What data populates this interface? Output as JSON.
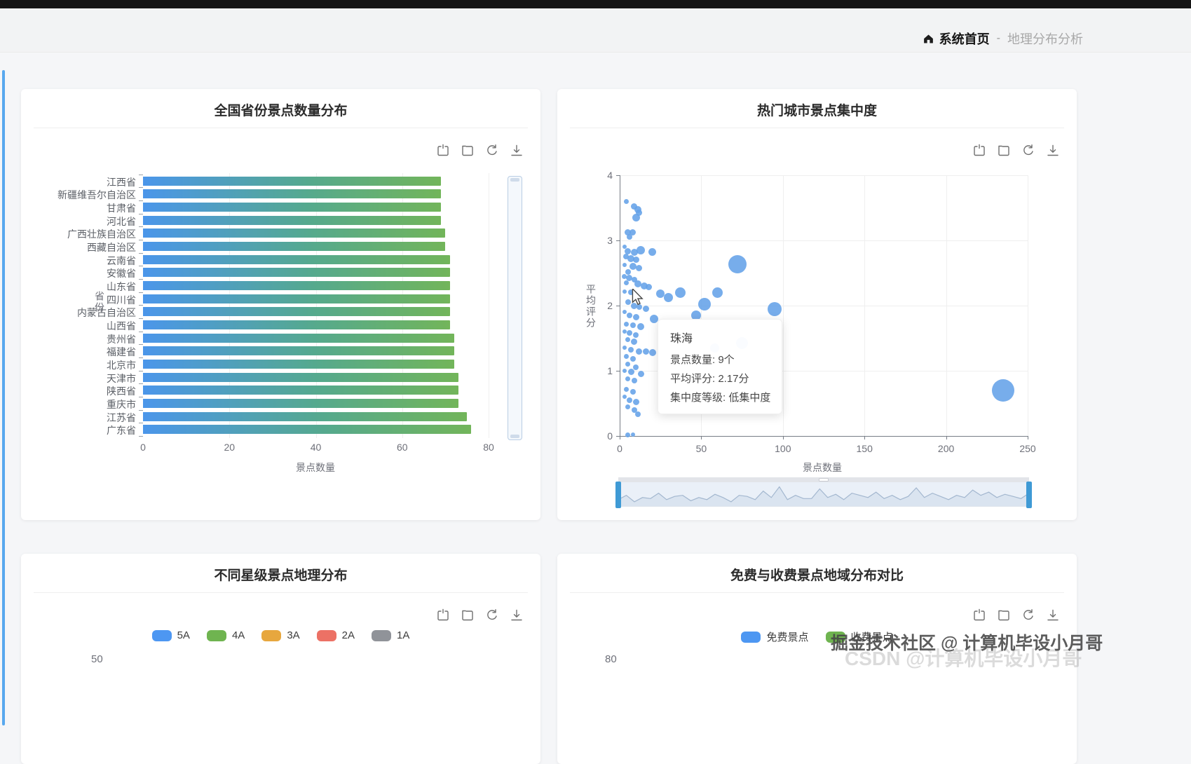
{
  "header": {
    "home_label": "系统首页",
    "separator": "-",
    "current_label": "地理分布分析"
  },
  "toolbox": {
    "icons": [
      "zoom-select-icon",
      "box-restore-icon",
      "refresh-icon",
      "download-icon"
    ]
  },
  "colors": {
    "bar_gradient_start": "#4b96ea",
    "bar_gradient_end": "#72b55a",
    "bubble": "#64a2e8",
    "slider_handle": "#3f9ad5",
    "accent_scrollbar": "#58a8ee",
    "legend_5A": "#4d97f2",
    "legend_4A": "#6fb450",
    "legend_3A": "#e7a73e",
    "legend_2A": "#ec7165",
    "legend_1A": "#909399",
    "legend_free": "#4d97f2",
    "legend_paid": "#6fb450"
  },
  "chart_data": [
    {
      "type": "bar",
      "orientation": "horizontal",
      "title": "全国省份景点数量分布",
      "xlabel": "景点数量",
      "ylabel": "省份",
      "xlim": [
        0,
        80
      ],
      "xticks": [
        0,
        20,
        40,
        60,
        80
      ],
      "grid": true,
      "categories": [
        "江西省",
        "新疆维吾尔自治区",
        "甘肃省",
        "河北省",
        "广西壮族自治区",
        "西藏自治区",
        "云南省",
        "安徽省",
        "山东省",
        "四川省",
        "内蒙古自治区",
        "山西省",
        "贵州省",
        "福建省",
        "北京市",
        "天津市",
        "陕西省",
        "重庆市",
        "江苏省",
        "广东省"
      ],
      "values": [
        69,
        69,
        69,
        69,
        70,
        70,
        71,
        71,
        71,
        71,
        71,
        71,
        72,
        72,
        72,
        73,
        73,
        73,
        75,
        76
      ]
    },
    {
      "type": "scatter",
      "title": "热门城市景点集中度",
      "xlabel": "景点数量",
      "ylabel": "平均评分",
      "xlim": [
        0,
        250
      ],
      "ylim": [
        0,
        4
      ],
      "xticks": [
        0,
        50,
        100,
        150,
        200,
        250
      ],
      "yticks": [
        0,
        1,
        2,
        3,
        4
      ],
      "grid": true,
      "points": [
        [
          4,
          3.6,
          7
        ],
        [
          9,
          3.52,
          9
        ],
        [
          11,
          3.47,
          10
        ],
        [
          12,
          3.42,
          9
        ],
        [
          10,
          3.35,
          11
        ],
        [
          5,
          3.12,
          9
        ],
        [
          8,
          3.12,
          9
        ],
        [
          6,
          3.05,
          8
        ],
        [
          3,
          2.9,
          6
        ],
        [
          5,
          2.83,
          9
        ],
        [
          9,
          2.82,
          10
        ],
        [
          13,
          2.85,
          12
        ],
        [
          20,
          2.82,
          11
        ],
        [
          4,
          2.75,
          8
        ],
        [
          7,
          2.72,
          10
        ],
        [
          10,
          2.7,
          9
        ],
        [
          3,
          2.62,
          6
        ],
        [
          8,
          2.6,
          10
        ],
        [
          12,
          2.58,
          9
        ],
        [
          72,
          2.63,
          26
        ],
        [
          5,
          2.52,
          8
        ],
        [
          3,
          2.45,
          7
        ],
        [
          6,
          2.42,
          9
        ],
        [
          9,
          2.4,
          8
        ],
        [
          4,
          2.35,
          7
        ],
        [
          11,
          2.33,
          10
        ],
        [
          15,
          2.3,
          10
        ],
        [
          18,
          2.28,
          9
        ],
        [
          3,
          2.22,
          6
        ],
        [
          7,
          2.2,
          8
        ],
        [
          25,
          2.18,
          12
        ],
        [
          30,
          2.12,
          13
        ],
        [
          37,
          2.2,
          15
        ],
        [
          60,
          2.2,
          15
        ],
        [
          52,
          2.02,
          18
        ],
        [
          5,
          2.05,
          8
        ],
        [
          9,
          2.0,
          9
        ],
        [
          12,
          1.98,
          8
        ],
        [
          16,
          1.95,
          9
        ],
        [
          95,
          1.95,
          20
        ],
        [
          47,
          1.85,
          14
        ],
        [
          3,
          1.9,
          6
        ],
        [
          6,
          1.85,
          8
        ],
        [
          10,
          1.82,
          9
        ],
        [
          21,
          1.8,
          12
        ],
        [
          4,
          1.72,
          7
        ],
        [
          8,
          1.7,
          8
        ],
        [
          13,
          1.68,
          10
        ],
        [
          3,
          1.6,
          6
        ],
        [
          6,
          1.58,
          8
        ],
        [
          10,
          1.55,
          8
        ],
        [
          5,
          1.48,
          7
        ],
        [
          9,
          1.45,
          9
        ],
        [
          75,
          1.42,
          17
        ],
        [
          58,
          1.35,
          13
        ],
        [
          3,
          1.35,
          6
        ],
        [
          7,
          1.32,
          8
        ],
        [
          12,
          1.3,
          9
        ],
        [
          16,
          1.3,
          9
        ],
        [
          20,
          1.28,
          10
        ],
        [
          4,
          1.22,
          7
        ],
        [
          8,
          1.18,
          8
        ],
        [
          5,
          1.1,
          7
        ],
        [
          10,
          1.05,
          8
        ],
        [
          3,
          1.0,
          6
        ],
        [
          7,
          0.98,
          9
        ],
        [
          13,
          0.95,
          9
        ],
        [
          5,
          0.88,
          7
        ],
        [
          9,
          0.85,
          8
        ],
        [
          4,
          0.72,
          7
        ],
        [
          8,
          0.68,
          8
        ],
        [
          235,
          0.7,
          32
        ],
        [
          3,
          0.6,
          6
        ],
        [
          6,
          0.55,
          8
        ],
        [
          10,
          0.52,
          9
        ],
        [
          5,
          0.45,
          7
        ],
        [
          9,
          0.4,
          8
        ],
        [
          11,
          0.33,
          8
        ],
        [
          5,
          0.02,
          7
        ],
        [
          8,
          0.02,
          6
        ]
      ],
      "tooltip": {
        "title": "珠海",
        "lines": [
          "景点数量: 9个",
          "平均评分: 2.17分",
          "集中度等级: 低集中度"
        ]
      },
      "datazoom_profile": [
        0.3,
        0.5,
        0.2,
        0.4,
        0.35,
        0.6,
        0.3,
        0.45,
        0.5,
        0.25,
        0.4,
        0.3,
        0.55,
        0.4,
        0.2,
        0.5,
        0.45,
        0.3,
        0.7,
        0.4,
        0.9,
        0.3,
        0.5,
        0.35,
        0.35,
        0.8,
        0.4,
        0.55,
        0.3,
        0.6,
        0.5,
        0.4,
        0.65,
        0.35,
        0.5,
        0.3,
        0.45,
        0.85,
        0.4,
        0.6,
        0.45,
        0.3,
        0.5,
        0.4,
        0.75,
        0.5,
        0.65,
        0.4,
        0.55,
        0.45,
        0.35,
        0.6
      ]
    },
    {
      "type": "bar",
      "title": "不同星级景点地理分布",
      "legend": [
        "5A",
        "4A",
        "3A",
        "2A",
        "1A"
      ],
      "legend_position": "top",
      "visible_ytick": "50"
    },
    {
      "type": "bar",
      "title": "免费与收费景点地域分布对比",
      "legend": [
        "免费景点",
        "收费景点"
      ],
      "legend_position": "top",
      "visible_ytick": "80"
    }
  ],
  "watermark": {
    "line1": "掘金技术社区 @ 计算机毕设小月哥",
    "line2": "CSDN @计算机毕设小月哥"
  }
}
